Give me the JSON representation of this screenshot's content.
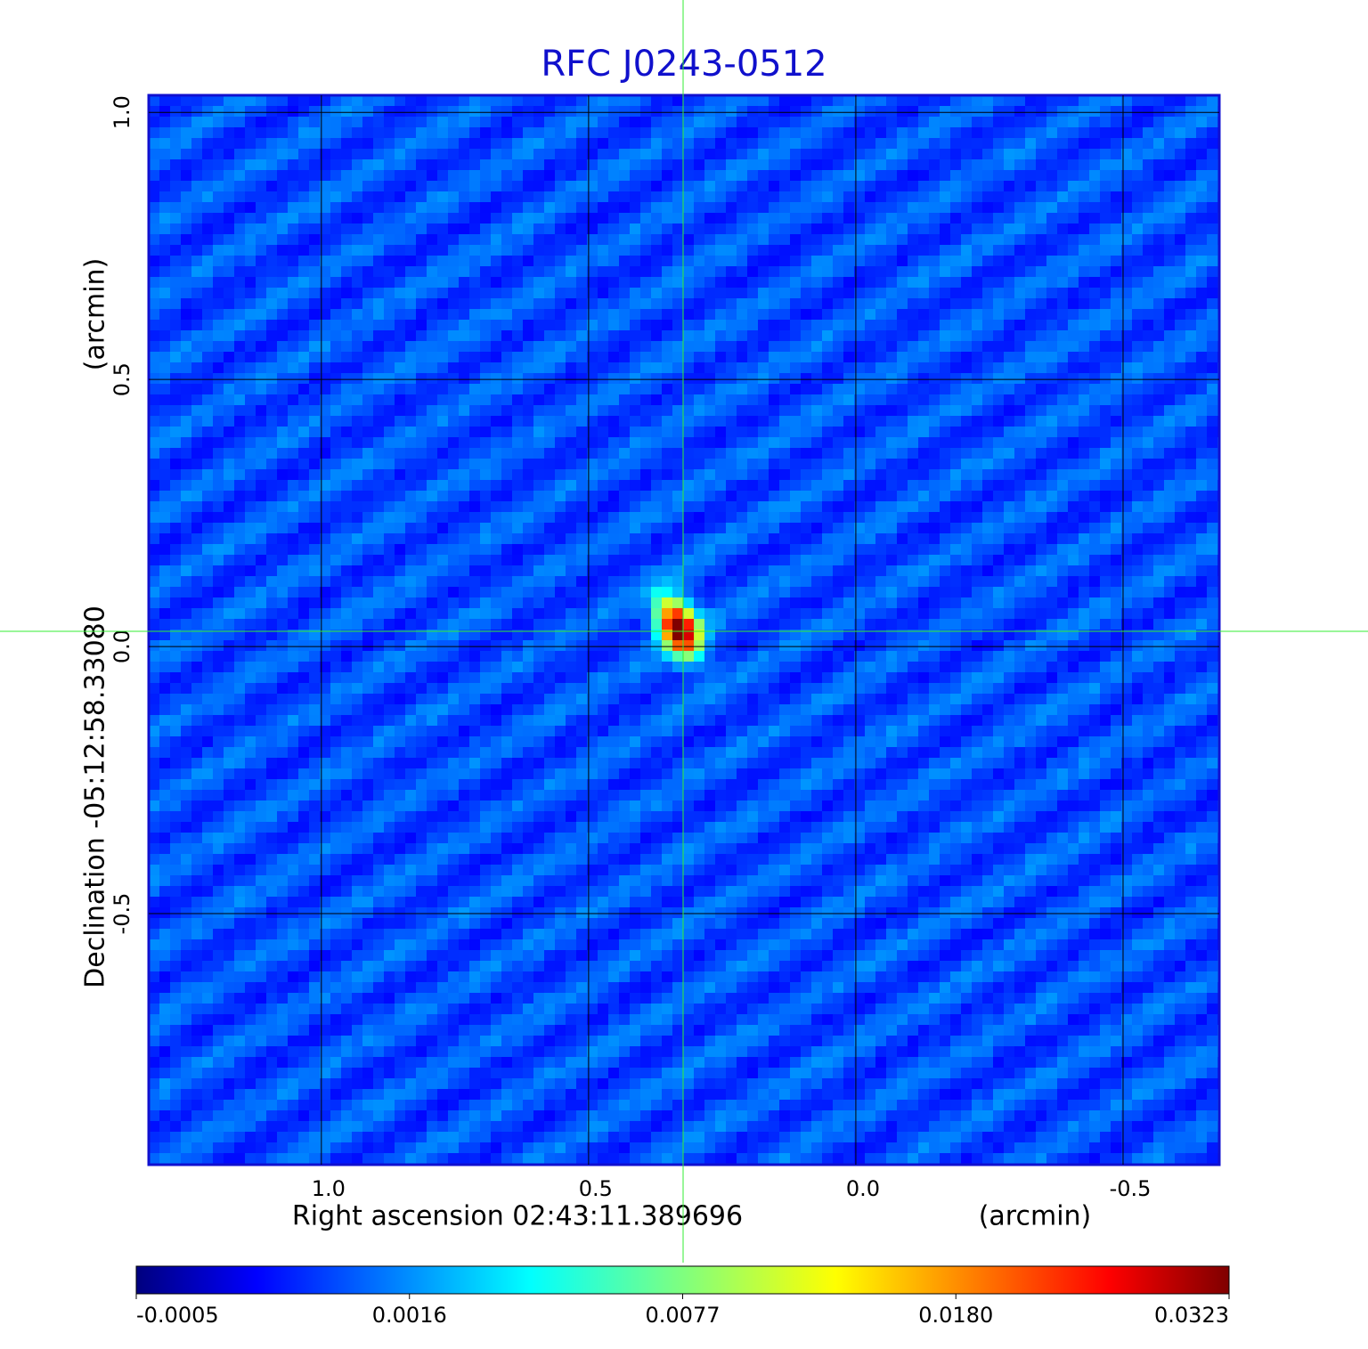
{
  "chart_data": {
    "type": "image",
    "title": "RFC J0243-0512",
    "x_label": "Right ascension  02:43:11.389696",
    "x_unit": "(arcmin)",
    "y_label": "Declination  -05:12:58.33080",
    "y_unit": "(arcmin)",
    "xlim": [
      1.323,
      -0.68
    ],
    "ylim": [
      -0.97,
      1.032
    ],
    "xticks": [
      {
        "value": 1,
        "label": "1.0"
      },
      0.5,
      {
        "value": 0,
        "label": "0.0"
      },
      -0.5
    ],
    "yticks": [
      {
        "value": 1,
        "label": "1.0"
      },
      0.5,
      {
        "value": 0,
        "label": "0.0"
      },
      -0.5
    ],
    "grid": true,
    "colormap": "jet",
    "colorbar_ticks": [
      -0.0005,
      0.0016,
      0.0077,
      {
        "value": 0.018,
        "label": "0.0180"
      },
      0.0323
    ]
  }
}
